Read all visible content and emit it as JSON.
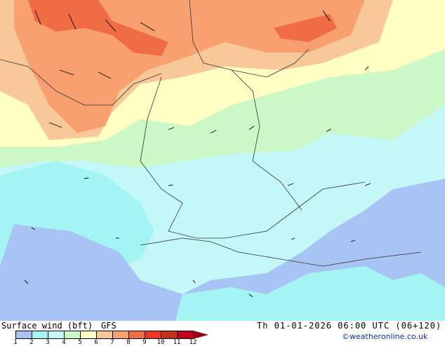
{
  "title": "Surface wind (bft)",
  "model": "GFS",
  "valid_time": "Th 01-01-2026 06:00 UTC (06+120)",
  "copyright": "©weatheronline.co.uk",
  "legend": {
    "ticks": [
      "1",
      "2",
      "3",
      "4",
      "5",
      "6",
      "7",
      "8",
      "9",
      "10",
      "11",
      "12"
    ],
    "colors": [
      "#a8c4f4",
      "#a4f4f4",
      "#c4f8f8",
      "#ccf8c8",
      "#ffffc4",
      "#f8c898",
      "#f8a070",
      "#f06c44",
      "#f03424",
      "#c43018",
      "#c00020"
    ],
    "overflow_color": "#900010"
  }
}
